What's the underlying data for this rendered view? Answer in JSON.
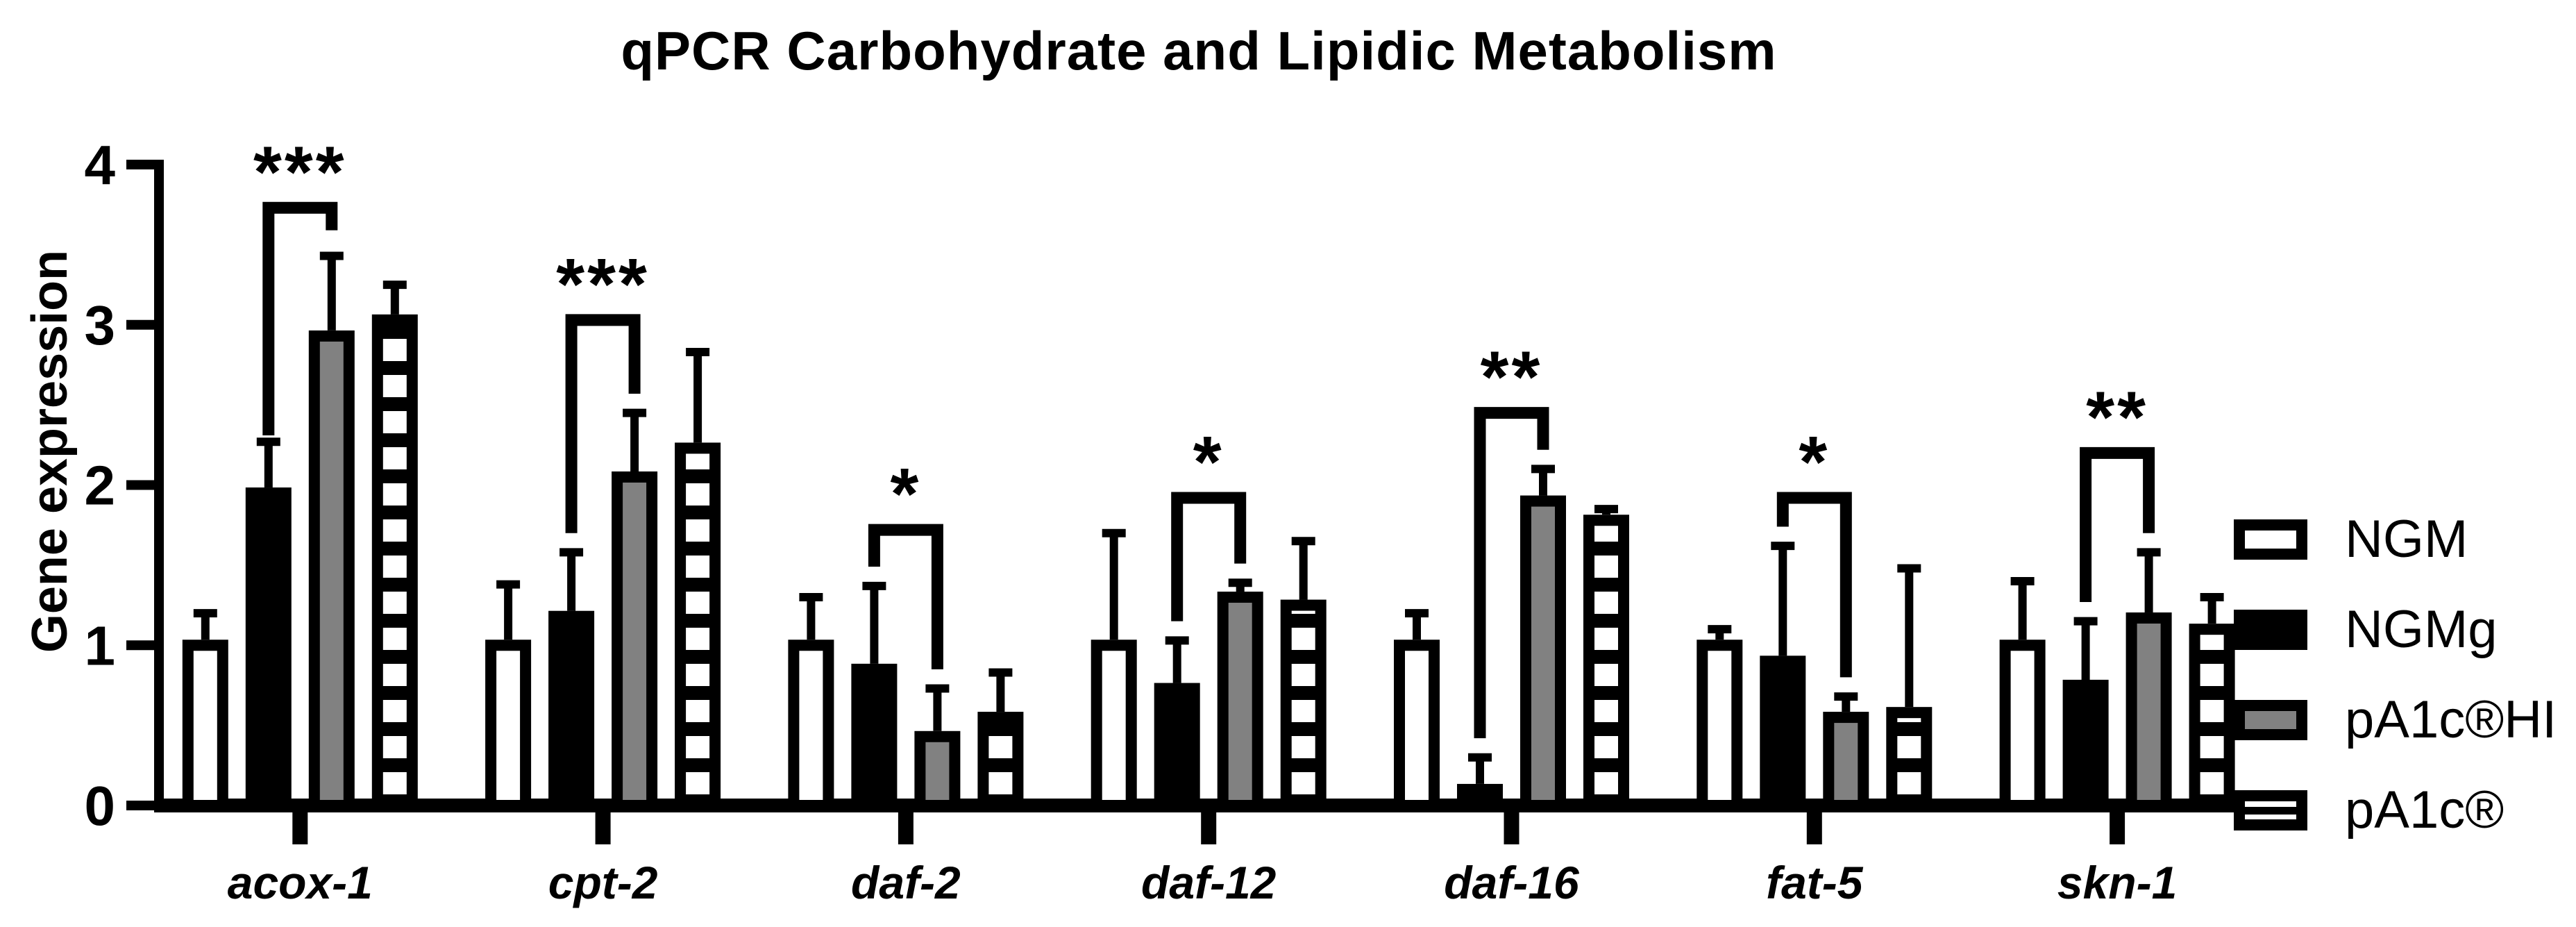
{
  "chart_data": {
    "type": "bar",
    "title": "qPCR Carbohydrate and Lipidic Metabolism",
    "xlabel": "",
    "ylabel": "Gene expression",
    "ylim": [
      0,
      4
    ],
    "yticks": [
      0,
      1,
      2,
      3,
      4
    ],
    "grid": false,
    "categories": [
      "acox-1",
      "cpt-2",
      "daf-2",
      "daf-12",
      "daf-16",
      "fat-5",
      "skn-1"
    ],
    "series": [
      {
        "name": "NGM",
        "swatch": "open",
        "values": [
          1.0,
          1.0,
          1.0,
          1.0,
          1.0,
          1.0,
          1.0
        ],
        "errors_plus": [
          0.2,
          0.38,
          0.3,
          0.7,
          0.2,
          0.1,
          0.4
        ]
      },
      {
        "name": "NGMg",
        "swatch": "solid",
        "values": [
          1.95,
          1.18,
          0.85,
          0.73,
          0.1,
          0.9,
          0.75
        ],
        "errors_plus": [
          0.32,
          0.4,
          0.52,
          0.3,
          0.2,
          0.72,
          0.4
        ]
      },
      {
        "name": "pA1c®HI",
        "swatch": "gray",
        "values": [
          2.93,
          2.05,
          0.43,
          1.3,
          1.9,
          0.55,
          1.17
        ],
        "errors_plus": [
          0.5,
          0.4,
          0.3,
          0.09,
          0.2,
          0.13,
          0.41
        ]
      },
      {
        "name": "pA1c®",
        "swatch": "hstripes",
        "values": [
          3.03,
          2.23,
          0.55,
          1.25,
          1.78,
          0.58,
          1.1
        ],
        "errors_plus": [
          0.22,
          0.6,
          0.28,
          0.4,
          0.07,
          0.9,
          0.2
        ]
      }
    ],
    "significance": [
      {
        "category": "acox-1",
        "label": "***",
        "between": [
          "NGMg",
          "pA1c®HI"
        ],
        "top": 3.73,
        "left_drop": 2.31,
        "right_drop": 3.59
      },
      {
        "category": "cpt-2",
        "label": "***",
        "between": [
          "NGMg",
          "pA1c®HI"
        ],
        "top": 3.03,
        "left_drop": 1.7,
        "right_drop": 2.57
      },
      {
        "category": "daf-2",
        "label": "*",
        "between": [
          "NGMg",
          "pA1c®HI"
        ],
        "top": 1.72,
        "left_drop": 1.49,
        "right_drop": 0.85
      },
      {
        "category": "daf-12",
        "label": "*",
        "between": [
          "NGMg",
          "pA1c®HI"
        ],
        "top": 1.92,
        "left_drop": 1.15,
        "right_drop": 1.51
      },
      {
        "category": "daf-16",
        "label": "**",
        "between": [
          "NGMg",
          "pA1c®HI"
        ],
        "top": 2.45,
        "left_drop": 0.42,
        "right_drop": 2.22
      },
      {
        "category": "fat-5",
        "label": "*",
        "between": [
          "NGMg",
          "pA1c®HI"
        ],
        "top": 1.92,
        "left_drop": 1.74,
        "right_drop": 0.8
      },
      {
        "category": "skn-1",
        "label": "**",
        "between": [
          "NGMg",
          "pA1c®HI"
        ],
        "top": 2.2,
        "left_drop": 1.27,
        "right_drop": 1.7
      }
    ],
    "legend": {
      "position": "right",
      "entries": [
        "NGM",
        "NGMg",
        "pA1c®HI",
        "pA1c®"
      ]
    },
    "colors": {
      "bar_outline": "#000000",
      "solid_fill": "#000000",
      "gray_fill": "#818181",
      "open_fill": "#ffffff",
      "background": "#ffffff"
    }
  }
}
